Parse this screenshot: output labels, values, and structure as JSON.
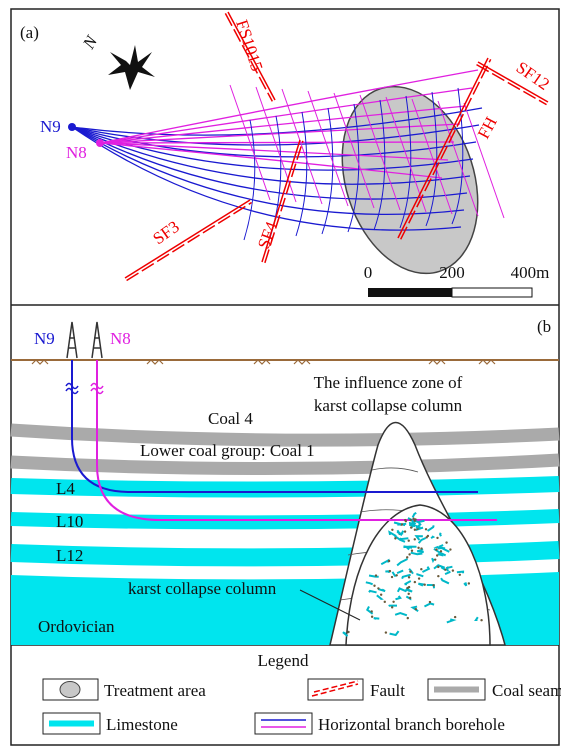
{
  "panel_a": {
    "label": "(a)",
    "north": "N",
    "faults": [
      "FS1015",
      "SF12",
      "FH",
      "SF3",
      "SF4"
    ],
    "wells": [
      "N9",
      "N8"
    ],
    "scale_bar": [
      "0",
      "200",
      "400m"
    ]
  },
  "panel_b": {
    "label": "(b",
    "wells": [
      "N9",
      "N8"
    ],
    "influence_zone": [
      "The influence zone of",
      "karst collapse column"
    ],
    "layers": [
      "Coal 4",
      "Lower coal group: Coal 1",
      "L4",
      "L10",
      "L12",
      "Ordovician"
    ],
    "column_label": "karst collapse column"
  },
  "legend": {
    "title": "Legend",
    "items": [
      "Treatment area",
      "Fault",
      "Coal seam",
      "Limestone",
      "Horizontal branch borehole"
    ]
  }
}
